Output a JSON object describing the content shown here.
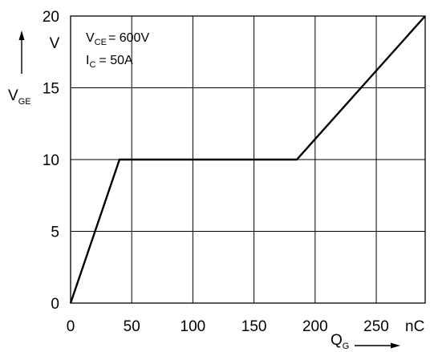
{
  "chart_data": {
    "type": "line",
    "x": [
      0,
      40,
      185,
      290
    ],
    "y": [
      0,
      10,
      10,
      20
    ],
    "xlim": [
      0,
      290
    ],
    "ylim": [
      0,
      20
    ],
    "xticks": [
      "0",
      "50",
      "100",
      "150",
      "200",
      "250"
    ],
    "xtick_values": [
      0,
      50,
      100,
      150,
      200,
      250
    ],
    "yticks": [
      "0",
      "5",
      "10",
      "15",
      "20"
    ],
    "ytick_values": [
      0,
      5,
      10,
      15,
      20
    ],
    "x_unit": "nC",
    "y_unit": "V",
    "xlabel": {
      "main": "Q",
      "sub": "G"
    },
    "ylabel": {
      "main": "V",
      "sub": "GE"
    },
    "grid": true,
    "annotations": {
      "vce": {
        "main": "V",
        "sub": "CE",
        "value": "= 600V"
      },
      "ic": {
        "main": "I",
        "sub": "C",
        "value": "=   50A"
      }
    }
  }
}
